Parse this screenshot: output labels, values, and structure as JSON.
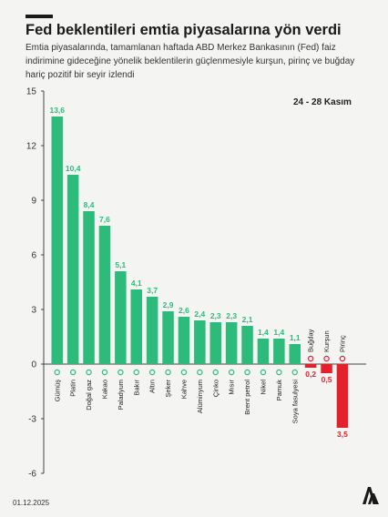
{
  "title": "Fed beklentileri emtia piyasalarına yön verdi",
  "subtitle": "Emtia piyasalarında, tamamlanan haftada ABD Merkez Bankasının (Fed) faiz indirimine gideceğine yönelik beklentilerin güçlenmesiyle kurşun, pirinç ve buğday hariç pozitif bir seyir izlendi",
  "period": "24 - 28 Kasım",
  "date": "01.12.2025",
  "colors": {
    "positive": "#2dbb7c",
    "negative": "#e3202b"
  },
  "chart_data": {
    "type": "bar",
    "title": "",
    "xlabel": "",
    "ylabel": "",
    "ylim": [
      -6,
      15
    ],
    "yticks": [
      15,
      12,
      9,
      6,
      3,
      0,
      -3,
      -6
    ],
    "grid": false,
    "categories": [
      "Gümüş",
      "Platin",
      "Doğal gaz",
      "Kakao",
      "Paladyum",
      "Bakır",
      "Altın",
      "Şeker",
      "Kahve",
      "Alüminyum",
      "Çinko",
      "Mısır",
      "Brent petrol",
      "Nikel",
      "Pamuk",
      "Soya fasulyesi",
      "Buğday",
      "Kurşun",
      "Pirinç"
    ],
    "values": [
      13.6,
      10.4,
      8.4,
      7.6,
      5.1,
      4.1,
      3.7,
      2.9,
      2.6,
      2.4,
      2.3,
      2.3,
      2.1,
      1.4,
      1.4,
      1.1,
      -0.2,
      -0.5,
      -3.5
    ],
    "value_labels": [
      "13,6",
      "10,4",
      "8,4",
      "7,6",
      "5,1",
      "4,1",
      "3,7",
      "2,9",
      "2,6",
      "2,4",
      "2,3",
      "2,3",
      "2,1",
      "1,4",
      "1,4",
      "1,1",
      "0,2",
      "0,5",
      "3,5"
    ]
  }
}
